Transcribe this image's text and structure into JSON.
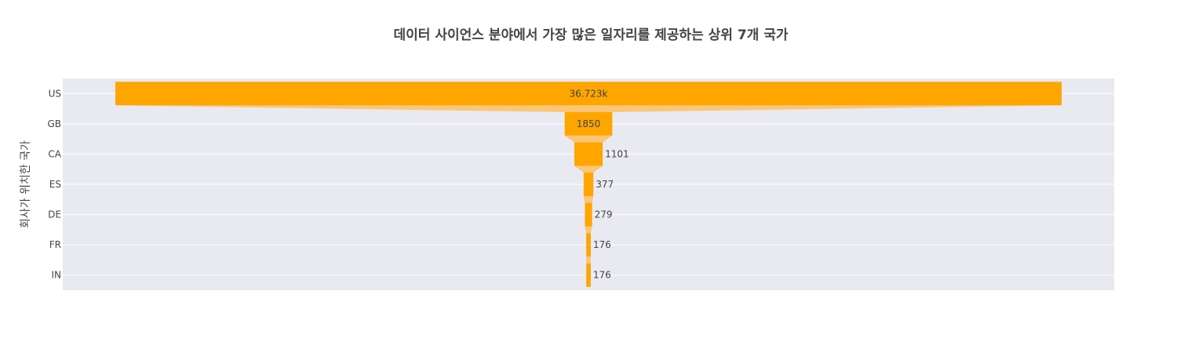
{
  "chart_data": {
    "type": "funnel",
    "title": "데이터 사이언스 분야에서 가장 많은 일자리를 제공하는 상위 7개 국가",
    "xlabel": "",
    "ylabel": "회사가 위치한 국가",
    "categories": [
      "US",
      "GB",
      "CA",
      "ES",
      "DE",
      "FR",
      "IN"
    ],
    "values": [
      36723,
      1850,
      1101,
      377,
      279,
      176,
      176
    ],
    "value_labels": [
      "36.723k",
      "1850",
      "1101",
      "377",
      "279",
      "176",
      "176"
    ],
    "grid": true,
    "bar_color": "#FFA500",
    "connector_color": "#FBC676",
    "plot_background": "#E9E9F1",
    "grid_color": "#FFFFFF"
  }
}
